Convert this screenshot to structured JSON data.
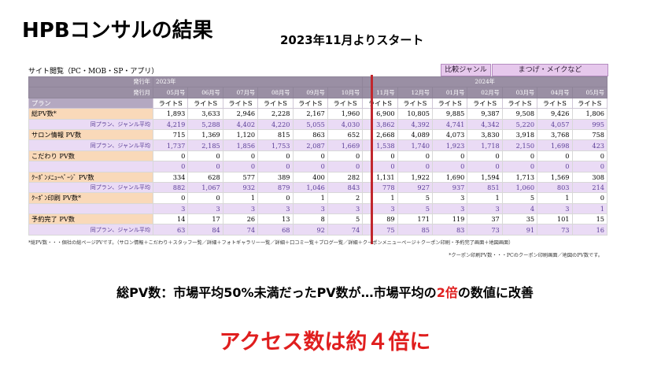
{
  "title": "HPBコンサルの結果",
  "subtitle": "2023年11月よりスタート",
  "table": {
    "caption": "サイト閲覧（PC・MOB・SP・アプリ）",
    "tag_compare": "比較ジャンル",
    "tag_genre": "まつげ・メイクなど",
    "row_year_label": "発行年",
    "row_issue_label": "発行月",
    "year_2023": "2023年",
    "year_2024": "2024年",
    "issues": [
      "05月号",
      "06月号",
      "07月号",
      "08月号",
      "09月号",
      "10月号",
      "11月号",
      "12月号",
      "01月号",
      "02月号",
      "03月号",
      "04月号",
      "05月号"
    ],
    "plan_label": "プラン",
    "plans": [
      "ライトS",
      "ライトS",
      "ライトS",
      "ライトS",
      "ライトS",
      "ライトS",
      "ライトS",
      "ライトS",
      "ライトS",
      "ライトS",
      "ライトS",
      "ライトS",
      "ライトS"
    ],
    "rows": [
      {
        "label": "総PV数*",
        "values": [
          "1,893",
          "3,633",
          "2,946",
          "2,228",
          "2,167",
          "1,960",
          "6,900",
          "10,805",
          "9,885",
          "9,387",
          "9,508",
          "9,426",
          "1,806"
        ],
        "sub_label": "同プラン、ジャンル平均",
        "sub_values": [
          "4,219",
          "5,288",
          "4,402",
          "4,220",
          "5,055",
          "4,030",
          "3,862",
          "4,392",
          "4,741",
          "4,342",
          "5,220",
          "4,057",
          "995"
        ]
      },
      {
        "label": "サロン情報 PV数",
        "values": [
          "715",
          "1,369",
          "1,120",
          "815",
          "863",
          "652",
          "2,668",
          "4,089",
          "4,073",
          "3,830",
          "3,918",
          "3,768",
          "758"
        ],
        "sub_label": "同プラン、ジャンル平均",
        "sub_values": [
          "1,737",
          "2,185",
          "1,856",
          "1,753",
          "2,087",
          "1,669",
          "1,538",
          "1,740",
          "1,923",
          "1,718",
          "2,150",
          "1,698",
          "423"
        ]
      },
      {
        "label": "こだわり PV数",
        "values": [
          "0",
          "0",
          "0",
          "0",
          "0",
          "0",
          "0",
          "0",
          "0",
          "0",
          "0",
          "0",
          "0"
        ],
        "sub_label": "",
        "sub_values": [
          "0",
          "0",
          "0",
          "0",
          "0",
          "0",
          "0",
          "0",
          "0",
          "0",
          "0",
          "0",
          "0"
        ]
      },
      {
        "label": "ｸｰﾎﾟﾝﾒﾆｭｰﾍﾟｰｼﾞ PV数",
        "values": [
          "334",
          "628",
          "577",
          "389",
          "400",
          "282",
          "1,131",
          "1,922",
          "1,690",
          "1,594",
          "1,713",
          "1,569",
          "308"
        ],
        "sub_label": "同プラン、ジャンル平均",
        "sub_values": [
          "882",
          "1,067",
          "932",
          "879",
          "1,046",
          "843",
          "778",
          "927",
          "937",
          "851",
          "1,060",
          "803",
          "214"
        ]
      },
      {
        "label": "ｸｰﾎﾟﾝ印刷 PV数*",
        "values": [
          "0",
          "0",
          "1",
          "0",
          "1",
          "2",
          "1",
          "5",
          "3",
          "1",
          "5",
          "1",
          "0"
        ],
        "sub_label": "",
        "sub_values": [
          "3",
          "3",
          "3",
          "3",
          "3",
          "3",
          "3",
          "5",
          "3",
          "3",
          "4",
          "3",
          "1"
        ]
      },
      {
        "label": "予約完了 PV数",
        "values": [
          "14",
          "17",
          "26",
          "13",
          "8",
          "5",
          "89",
          "171",
          "119",
          "37",
          "35",
          "101",
          "15"
        ],
        "sub_label": "同プラン、ジャンル平均",
        "sub_values": [
          "63",
          "84",
          "74",
          "68",
          "92",
          "74",
          "75",
          "85",
          "83",
          "73",
          "91",
          "73",
          "16"
        ]
      }
    ],
    "note1": "*総PV数・・・個社の総ページPVです。（サロン情報＋こだわり＋スタッフ一覧／詳細＋フォトギャラリー一覧／詳細＋口コミ一覧＋ブログ一覧／詳細＋クーポンメニューページ＋クーポン印刷・予約完了画面＋地図画面）",
    "note2": "*クーポン印刷PV数・・・PCのクーポン印刷画面／地図のPV数です。"
  },
  "summary_pre": "総PV数：市場平均50%未満だったPV数が…市場平均の",
  "summary_red": "2倍",
  "summary_post": "の数値に改善",
  "conclusion": "アクセス数は約４倍に",
  "colors": {
    "accent_red": "#e01e1e",
    "divider_red": "#c1272d",
    "label_orange": "#f9d9b9",
    "sub_purple": "#eadbf5"
  }
}
